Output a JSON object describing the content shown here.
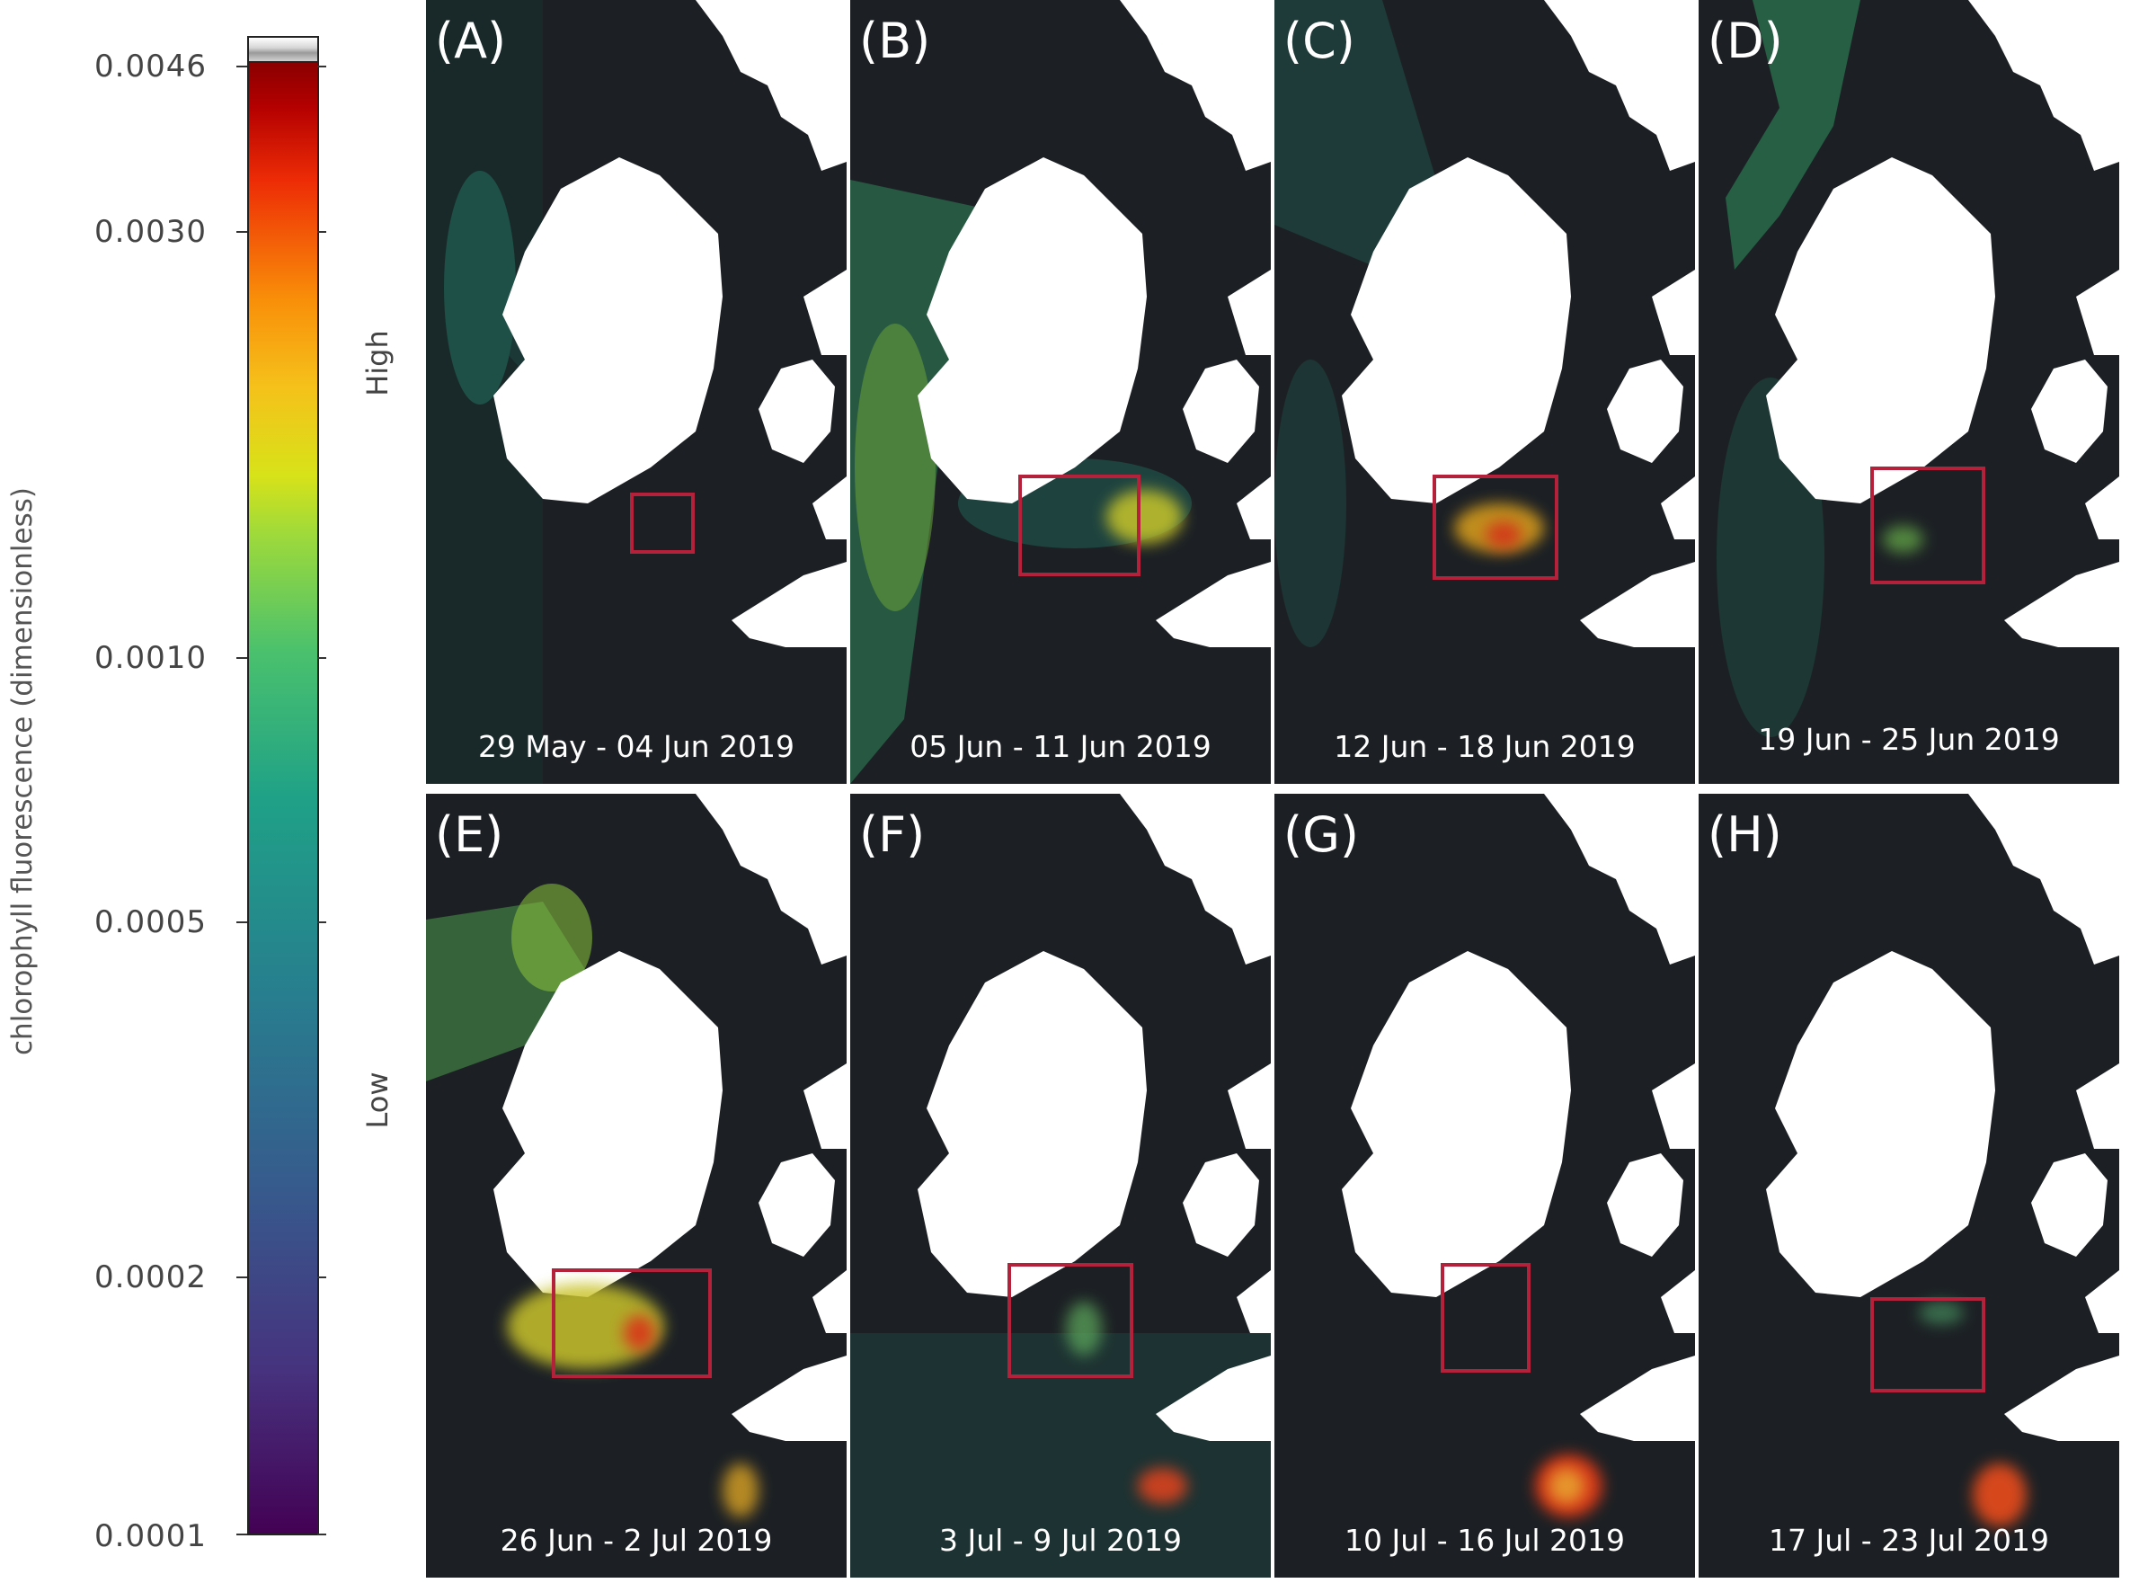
{
  "colorbar": {
    "title": "chlorophyll fluorescence (dimensionless)",
    "ticks": [
      {
        "label": "0.0046",
        "value": 0.0046
      },
      {
        "label": "0.0030",
        "value": 0.003
      },
      {
        "label": "0.0010",
        "value": 0.001
      },
      {
        "label": "0.0005",
        "value": 0.0005
      },
      {
        "label": "0.0002",
        "value": 0.0002
      },
      {
        "label": "0.0001",
        "value": 0.0001
      }
    ],
    "high_label": "High",
    "low_label": "Low"
  },
  "panels": [
    {
      "letter": "(A)",
      "date": "29 May - 04 Jun 2019"
    },
    {
      "letter": "(B)",
      "date": "05 Jun - 11 Jun 2019"
    },
    {
      "letter": "(C)",
      "date": "12 Jun - 18 Jun 2019"
    },
    {
      "letter": "(D)",
      "date": "19 Jun - 25 Jun 2019"
    },
    {
      "letter": "(E)",
      "date": "26 Jun - 2 Jul 2019"
    },
    {
      "letter": "(F)",
      "date": "3 Jul - 9 Jul 2019"
    },
    {
      "letter": "(G)",
      "date": "10 Jul - 16 Jul 2019"
    },
    {
      "letter": "(H)",
      "date": "17 Jul - 23 Jul 2019"
    }
  ],
  "colors": {
    "roi_box": "#b3213a",
    "sea": "#1c2024",
    "land": "#ffffff"
  }
}
